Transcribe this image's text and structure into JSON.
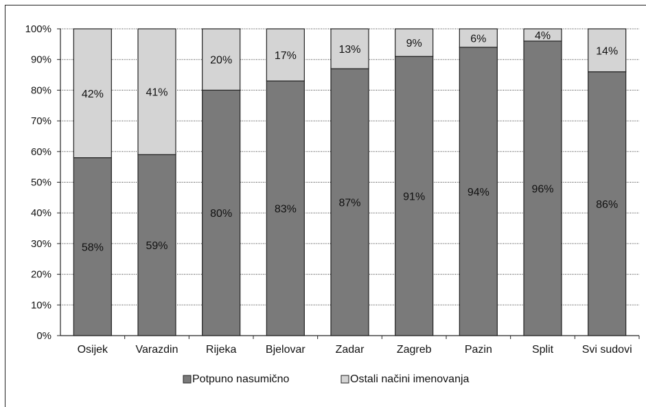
{
  "chart_data": {
    "type": "bar",
    "stacked": true,
    "categories": [
      "Osijek",
      "Varazdin",
      "Rijeka",
      "Bjelovar",
      "Zadar",
      "Zagreb",
      "Pazin",
      "Split",
      "Svi sudovi"
    ],
    "series": [
      {
        "name": "Potpuno nasumično",
        "color": "#7a7a7a",
        "values": [
          58,
          59,
          80,
          83,
          87,
          91,
          94,
          96,
          86
        ],
        "labels": [
          "58%",
          "59%",
          "80%",
          "83%",
          "87%",
          "91%",
          "94%",
          "96%",
          "86%"
        ]
      },
      {
        "name": "Ostali načini imenovanja",
        "color": "#d4d4d4",
        "values": [
          42,
          41,
          20,
          17,
          13,
          9,
          6,
          4,
          14
        ],
        "labels": [
          "42%",
          "41%",
          "20%",
          "17%",
          "13%",
          "9%",
          "6%",
          "4%",
          "14%"
        ]
      }
    ],
    "ylim": [
      0,
      100
    ],
    "yticks": [
      "0%",
      "10%",
      "20%",
      "30%",
      "40%",
      "50%",
      "60%",
      "70%",
      "80%",
      "90%",
      "100%"
    ],
    "grid": "horizontal dotted",
    "legend": "bottom-center",
    "title": "",
    "xlabel": "",
    "ylabel": ""
  }
}
